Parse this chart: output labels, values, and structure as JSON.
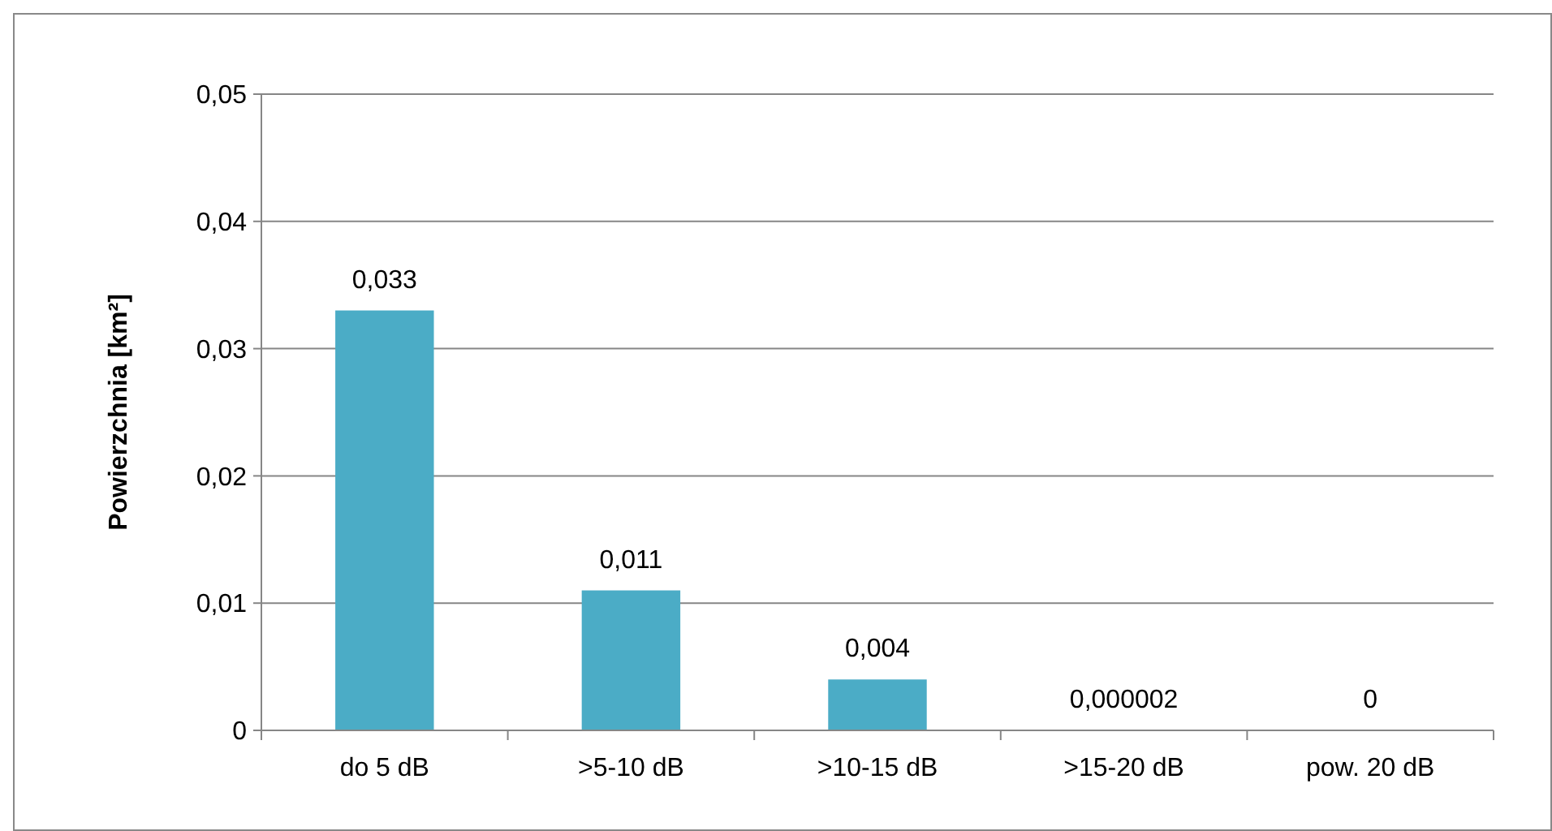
{
  "chart_data": {
    "type": "bar",
    "ylabel": "Powierzchnia [km²]",
    "categories": [
      "do 5 dB",
      ">5-10 dB",
      ">10-15 dB",
      ">15-20 dB",
      "pow. 20 dB"
    ],
    "values": [
      0.033,
      0.011,
      0.004,
      2e-06,
      0
    ],
    "value_labels": [
      "0,033",
      "0,011",
      "0,004",
      "0,000002",
      "0"
    ],
    "color": "#4bacc6",
    "ylim": [
      0,
      0.05
    ],
    "yticks": [
      0,
      {
        "value": 0.01,
        "label": "0,01"
      },
      {
        "value": 0.02,
        "label": "0,02"
      },
      {
        "value": 0.03,
        "label": "0,03"
      },
      {
        "value": 0.04,
        "label": "0,04"
      },
      {
        "value": 0.05,
        "label": "0,05"
      }
    ],
    "grid": "y"
  }
}
